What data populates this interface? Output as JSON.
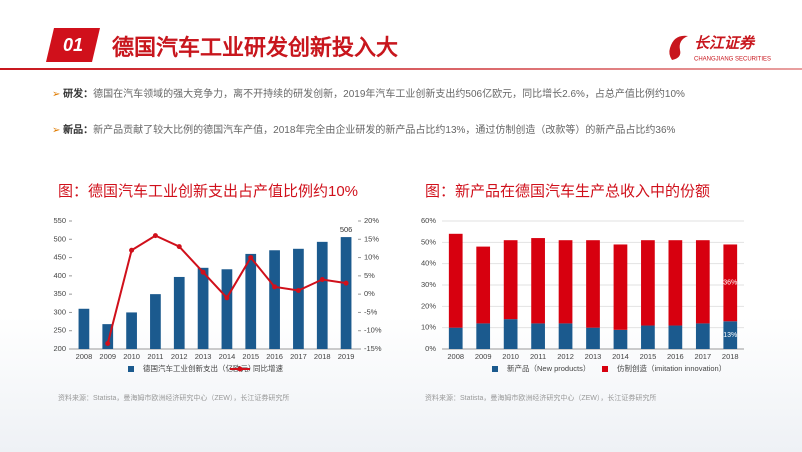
{
  "header": {
    "badge": "01",
    "title": "德国汽车工业研发创新投入大"
  },
  "logo": {
    "name": "长江证券",
    "subtitle": "CHANGJIANG SECURITIES"
  },
  "bullets": [
    {
      "label": "研发：",
      "text": "德国在汽车领域的强大竞争力，离不开持续的研发创新，2019年汽车工业创新支出约506亿欧元，同比增长2.6%，占总产值比例约10%"
    },
    {
      "label": "新品：",
      "text": "新产品贡献了较大比例的德国汽车产值，2018年完全由企业研发的新产品占比约13%，通过仿制创造（改款等）的新产品占比约36%"
    }
  ],
  "chart_data": [
    {
      "type": "bar",
      "title": "图：德国汽车工业创新支出占产值比例约10%",
      "categories": [
        "2008",
        "2009",
        "2010",
        "2011",
        "2012",
        "2013",
        "2014",
        "2015",
        "2016",
        "2017",
        "2018",
        "2019"
      ],
      "series": [
        {
          "name": "德国汽车工业创新支出（亿欧元）",
          "color": "#1b5a8e",
          "type": "bar",
          "values": [
            310,
            268,
            300,
            350,
            397,
            422,
            418,
            460,
            470,
            474,
            493,
            506
          ],
          "value_labels": [
            null,
            null,
            null,
            null,
            null,
            null,
            null,
            null,
            null,
            null,
            null,
            "506"
          ]
        },
        {
          "name": "同比增速",
          "color": "#d0101b",
          "type": "line",
          "axis": "y2",
          "values": [
            null,
            -13.5,
            12,
            16,
            13,
            6,
            -1,
            10,
            2,
            1,
            4,
            3
          ]
        }
      ],
      "ylim": [
        200,
        550
      ],
      "yticks": [
        200,
        250,
        300,
        350,
        400,
        450,
        500,
        550
      ],
      "y2lim": [
        -15,
        20
      ],
      "y2ticks": [
        {
          "value": -15,
          "label": "-15%"
        },
        {
          "value": -10,
          "label": "-10%"
        },
        {
          "value": -5,
          "label": "-5%"
        },
        {
          "value": 0,
          "label": "0%"
        },
        {
          "value": 5,
          "label": "5%"
        },
        {
          "value": 10,
          "label": "10%"
        },
        {
          "value": 15,
          "label": "15%"
        },
        {
          "value": 20,
          "label": "20%"
        }
      ],
      "grid": false,
      "source": "资料来源：Statista，曼海姆市欧洲经济研究中心（ZEW），长江证券研究所"
    },
    {
      "type": "stacked_bar",
      "title": "图：新产品在德国汽车生产总收入中的份额",
      "categories": [
        "2008",
        "2009",
        "2010",
        "2011",
        "2012",
        "2013",
        "2014",
        "2015",
        "2016",
        "2017",
        "2018"
      ],
      "series": [
        {
          "name": "新产品（New products）",
          "color": "#1b5a8e",
          "values": [
            10,
            12,
            14,
            12,
            12,
            10,
            9,
            11,
            11,
            12,
            13
          ],
          "value_labels": [
            null,
            null,
            null,
            null,
            null,
            null,
            null,
            null,
            null,
            null,
            "13%"
          ]
        },
        {
          "name": "仿制创造（imitation innovation）",
          "color": "#d7000f",
          "values": [
            44,
            36,
            37,
            40,
            39,
            41,
            40,
            40,
            40,
            39,
            36
          ],
          "value_labels": [
            null,
            null,
            null,
            null,
            null,
            null,
            null,
            null,
            null,
            null,
            "36%"
          ]
        }
      ],
      "ylim": [
        0,
        60
      ],
      "yticks": [
        {
          "value": 0,
          "label": "0%"
        },
        {
          "value": 10,
          "label": "10%"
        },
        {
          "value": 20,
          "label": "20%"
        },
        {
          "value": 30,
          "label": "30%"
        },
        {
          "value": 40,
          "label": "40%"
        },
        {
          "value": 50,
          "label": "50%"
        },
        {
          "value": 60,
          "label": "60%"
        }
      ],
      "grid": true,
      "source": "资料来源：Statista，曼海姆市欧洲经济研究中心（ZEW），长江证券研究所"
    }
  ]
}
